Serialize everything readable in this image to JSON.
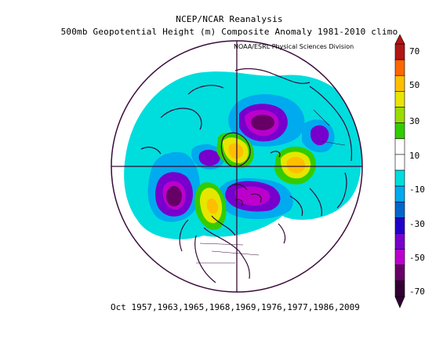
{
  "header": {
    "title_line1": "NCEP/NCAR Reanalysis",
    "title_line2": "500mb Geopotential Height (m) Composite Anomaly 1981-2010 climo",
    "credit": "NOAA/ESRL Physical Sciences Division"
  },
  "caption": "Oct 1957,1963,1965,1968,1969,1976,1977,1986,2009",
  "colorbar": {
    "labels": [
      "70",
      "50",
      "30",
      "10",
      "-10",
      "-30",
      "-50",
      "-70"
    ],
    "colors": [
      "#b31515",
      "#ff6600",
      "#ffbf00",
      "#e6e600",
      "#99dd00",
      "#33cc00",
      "#ffffff",
      "#ffffff",
      "#00dddd",
      "#00aaee",
      "#0066cc",
      "#2200cc",
      "#7700cc",
      "#bb00cc",
      "#660066",
      "#330033"
    ]
  },
  "map": {
    "projection": "north polar stereographic",
    "colors": {
      "coast": "#3a0a3a",
      "pos_weak": "#33cc00",
      "pos_mid": "#e6e600",
      "pos_strong": "#ffbf00",
      "neg_weak": "#00dddd",
      "neg_mid": "#00aaee",
      "neg_strong": "#0066cc",
      "neg_deep": "#7700cc",
      "neg_core": "#bb00cc",
      "neg_center": "#660066"
    }
  }
}
